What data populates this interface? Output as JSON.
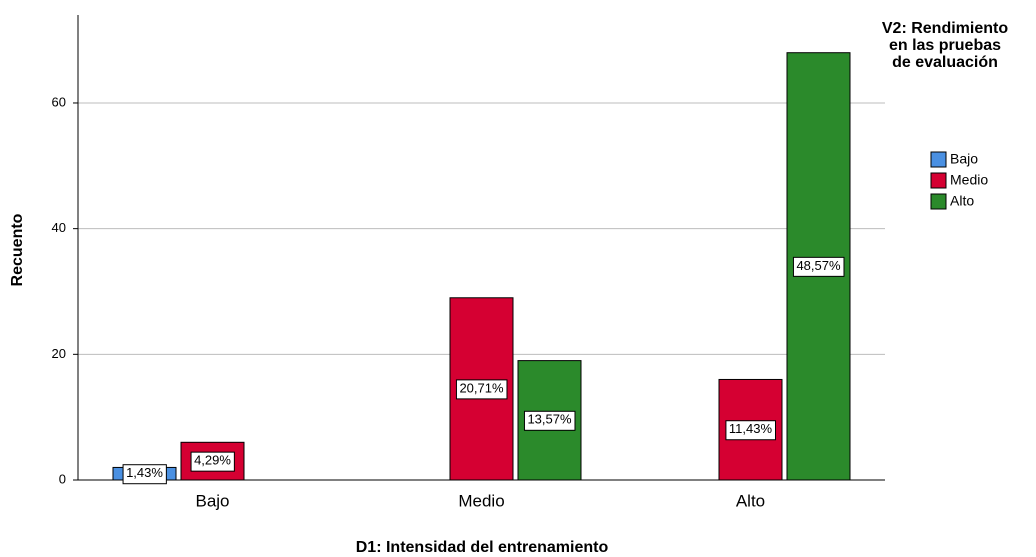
{
  "chart_data": {
    "type": "bar",
    "x_label": "D1: Intensidad del entrenamiento",
    "y_label": "Recuento",
    "legend_title": "V2: Rendimiento en las pruebas de evaluación",
    "categories": [
      "Bajo",
      "Medio",
      "Alto"
    ],
    "series": [
      {
        "name": "Bajo",
        "color": "#4a90e2",
        "values": [
          2,
          null,
          null
        ],
        "value_labels": [
          "1,43%",
          null,
          null
        ]
      },
      {
        "name": "Medio",
        "color": "#d50032",
        "values": [
          6,
          29,
          16
        ],
        "value_labels": [
          "4,29%",
          "20,71%",
          "11,43%"
        ]
      },
      {
        "name": "Alto",
        "color": "#2b8a2b",
        "values": [
          null,
          19,
          68
        ],
        "value_labels": [
          null,
          "13,57%",
          "48,57%"
        ]
      }
    ],
    "ylim": [
      0,
      74
    ],
    "yticks": [
      0,
      20,
      40,
      60
    ],
    "grid": true,
    "legend": "right"
  }
}
